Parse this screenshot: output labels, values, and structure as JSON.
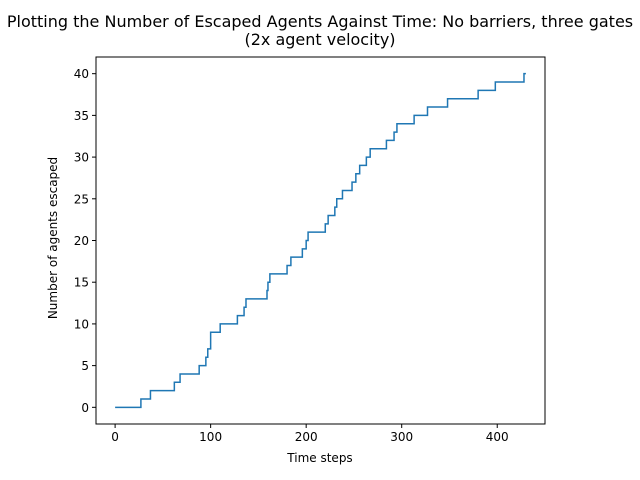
{
  "chart_data": {
    "type": "line",
    "title": "Plotting the Number of Escaped Agents Against Time: No barriers, three gates",
    "subtitle": "(2x agent velocity)",
    "xlabel": "Time steps",
    "ylabel": "Number of agents escaped",
    "xlim": [
      -20,
      450
    ],
    "ylim": [
      -2,
      42
    ],
    "xticks": [
      0,
      100,
      200,
      300,
      400
    ],
    "yticks": [
      0,
      5,
      10,
      15,
      20,
      25,
      30,
      35,
      40
    ],
    "grid": false,
    "series": [
      {
        "color": "#1f77b4",
        "points": [
          [
            0,
            0
          ],
          [
            27,
            0
          ],
          [
            27,
            1
          ],
          [
            37,
            1
          ],
          [
            37,
            2
          ],
          [
            62,
            2
          ],
          [
            62,
            3
          ],
          [
            68,
            3
          ],
          [
            68,
            4
          ],
          [
            88,
            4
          ],
          [
            88,
            5
          ],
          [
            95,
            5
          ],
          [
            95,
            6
          ],
          [
            97,
            6
          ],
          [
            97,
            7
          ],
          [
            100,
            7
          ],
          [
            100,
            9
          ],
          [
            110,
            9
          ],
          [
            110,
            10
          ],
          [
            128,
            10
          ],
          [
            128,
            11
          ],
          [
            135,
            11
          ],
          [
            135,
            12
          ],
          [
            137,
            12
          ],
          [
            137,
            13
          ],
          [
            159,
            13
          ],
          [
            159,
            14
          ],
          [
            160,
            14
          ],
          [
            160,
            15
          ],
          [
            162,
            15
          ],
          [
            162,
            16
          ],
          [
            180,
            16
          ],
          [
            180,
            17
          ],
          [
            184,
            17
          ],
          [
            184,
            18
          ],
          [
            196,
            18
          ],
          [
            196,
            19
          ],
          [
            200,
            19
          ],
          [
            200,
            20
          ],
          [
            202,
            20
          ],
          [
            202,
            21
          ],
          [
            220,
            21
          ],
          [
            220,
            22
          ],
          [
            223,
            22
          ],
          [
            223,
            23
          ],
          [
            230,
            23
          ],
          [
            230,
            24
          ],
          [
            232,
            24
          ],
          [
            232,
            25
          ],
          [
            238,
            25
          ],
          [
            238,
            26
          ],
          [
            248,
            26
          ],
          [
            248,
            27
          ],
          [
            252,
            27
          ],
          [
            252,
            28
          ],
          [
            256,
            28
          ],
          [
            256,
            29
          ],
          [
            263,
            29
          ],
          [
            263,
            30
          ],
          [
            267,
            30
          ],
          [
            267,
            31
          ],
          [
            284,
            31
          ],
          [
            284,
            32
          ],
          [
            292,
            32
          ],
          [
            292,
            33
          ],
          [
            295,
            33
          ],
          [
            295,
            34
          ],
          [
            313,
            34
          ],
          [
            313,
            35
          ],
          [
            327,
            35
          ],
          [
            327,
            36
          ],
          [
            348,
            36
          ],
          [
            348,
            37
          ],
          [
            380,
            37
          ],
          [
            380,
            38
          ],
          [
            398,
            38
          ],
          [
            398,
            39
          ],
          [
            428,
            39
          ],
          [
            428,
            40
          ],
          [
            430,
            40
          ]
        ]
      }
    ]
  }
}
